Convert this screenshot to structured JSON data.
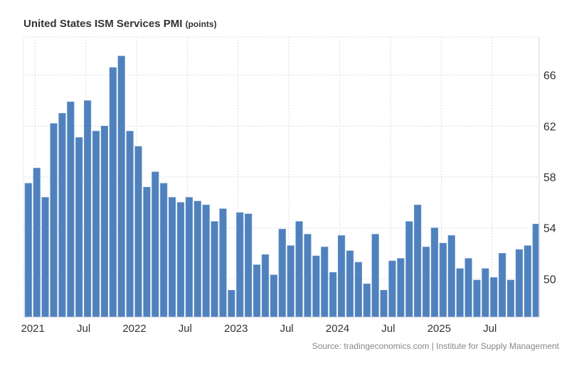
{
  "title": "United States ISM Services PMI",
  "unit": "(points)",
  "source": "Source: tradingeconomics.com | Institute for Supply Management",
  "colors": {
    "bar": "#4f81bd",
    "grid": "#dddddd",
    "text": "#333333"
  },
  "chart_data": {
    "type": "bar",
    "title": "United States ISM Services PMI",
    "ylabel": "points",
    "ylim": [
      47,
      69
    ],
    "yticks": [
      50,
      54,
      58,
      62,
      66
    ],
    "y_axis_side": "right",
    "grid": true,
    "x_tick_labels": [
      {
        "label": "2021",
        "month": "2021-01"
      },
      {
        "label": "Jul",
        "month": "2021-07"
      },
      {
        "label": "2022",
        "month": "2022-01"
      },
      {
        "label": "Jul",
        "month": "2022-07"
      },
      {
        "label": "2023",
        "month": "2023-01"
      },
      {
        "label": "Jul",
        "month": "2023-07"
      },
      {
        "label": "2024",
        "month": "2024-01"
      },
      {
        "label": "Jul",
        "month": "2024-07"
      },
      {
        "label": "2025",
        "month": "2025-01"
      },
      {
        "label": "Jul",
        "month": "2025-07"
      }
    ],
    "categories": [
      "2020-12",
      "2021-01",
      "2021-02",
      "2021-03",
      "2021-04",
      "2021-05",
      "2021-06",
      "2021-07",
      "2021-08",
      "2021-09",
      "2021-10",
      "2021-11",
      "2021-12",
      "2022-01",
      "2022-02",
      "2022-03",
      "2022-04",
      "2022-05",
      "2022-06",
      "2022-07",
      "2022-08",
      "2022-09",
      "2022-10",
      "2022-11",
      "2022-12",
      "2023-01",
      "2023-02",
      "2023-03",
      "2023-04",
      "2023-05",
      "2023-06",
      "2023-07",
      "2023-08",
      "2023-09",
      "2023-10",
      "2023-11",
      "2023-12",
      "2024-01",
      "2024-02",
      "2024-03",
      "2024-04",
      "2024-05",
      "2024-06",
      "2024-07",
      "2024-08",
      "2024-09",
      "2024-10",
      "2024-11",
      "2024-12",
      "2025-01",
      "2025-02",
      "2025-03",
      "2025-04",
      "2025-05",
      "2025-06",
      "2025-07",
      "2025-08",
      "2025-09",
      "2025-10",
      "2025-11",
      "2025-12"
    ],
    "values": [
      57.5,
      58.7,
      56.4,
      62.2,
      63.0,
      63.9,
      61.1,
      64.0,
      61.6,
      62.0,
      66.6,
      67.5,
      61.6,
      60.4,
      57.2,
      58.4,
      57.5,
      56.4,
      56.0,
      56.4,
      56.1,
      55.8,
      54.5,
      55.5,
      49.1,
      55.2,
      55.1,
      51.1,
      51.9,
      50.3,
      53.9,
      52.6,
      54.5,
      53.5,
      51.8,
      52.5,
      50.5,
      53.4,
      52.2,
      51.3,
      49.6,
      53.5,
      49.1,
      51.4,
      51.6,
      54.5,
      55.8,
      52.5,
      54.0,
      52.8,
      53.4,
      50.8,
      51.6,
      49.9,
      50.8,
      50.1,
      52.0,
      49.9,
      52.3,
      52.6,
      54.3
    ]
  }
}
